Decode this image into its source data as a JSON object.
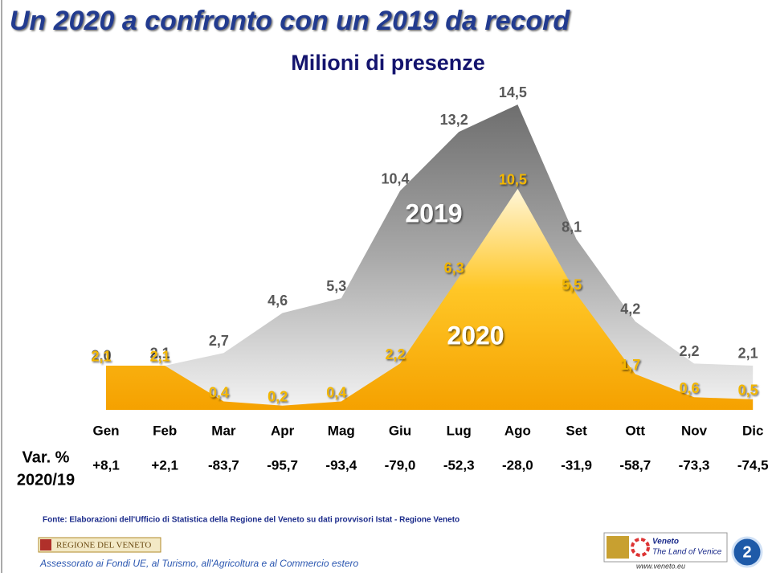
{
  "title": "Un 2020 a confronto con un 2019 da record",
  "chart_data": {
    "type": "area",
    "title": "Milioni di presenze",
    "categories": [
      "Gen",
      "Feb",
      "Mar",
      "Apr",
      "Mag",
      "Giu",
      "Lug",
      "Ago",
      "Set",
      "Ott",
      "Nov",
      "Dic"
    ],
    "series": [
      {
        "name": "2019",
        "color": "#7f7f7f",
        "values": [
          2.0,
          2.1,
          2.7,
          4.6,
          5.3,
          10.4,
          13.2,
          14.5,
          8.1,
          4.2,
          2.2,
          2.1
        ],
        "value_labels": [
          "2,0",
          "2,1",
          "2,7",
          "4,6",
          "5,3",
          "10,4",
          "13,2",
          "14,5",
          "8,1",
          "4,2",
          "2,2",
          "2,1"
        ]
      },
      {
        "name": "2020",
        "color": "#f5a800",
        "values": [
          2.1,
          2.1,
          0.4,
          0.2,
          0.4,
          2.2,
          6.3,
          10.5,
          5.5,
          1.7,
          0.6,
          0.5
        ],
        "value_labels": [
          "2,1",
          "2,1",
          "0,4",
          "0,2",
          "0,4",
          "2,2",
          "6,3",
          "10,5",
          "5,5",
          "1,7",
          "0,6",
          "0,5"
        ]
      }
    ]
  },
  "variation": {
    "label_line1": "Var. %",
    "label_line2": "2020/19",
    "values": [
      "+8,1",
      "+2,1",
      "-83,7",
      "-95,7",
      "-93,4",
      "-79,0",
      "-52,3",
      "-28,0",
      "-31,9",
      "-58,7",
      "-73,3",
      "-74,5"
    ]
  },
  "footer": {
    "source": "Fonte: Elaborazioni dell'Ufficio di Statistica della Regione del Veneto su dati provvisori Istat - Regione Veneto",
    "org": "REGIONE DEL VENETO",
    "department": "Assessorato ai Fondi UE, al Turismo, all'Agricoltura e al Commercio estero",
    "brand": "Veneto",
    "brand_tagline": "The Land of Venice",
    "website": "www.veneto.eu",
    "page": "2"
  }
}
